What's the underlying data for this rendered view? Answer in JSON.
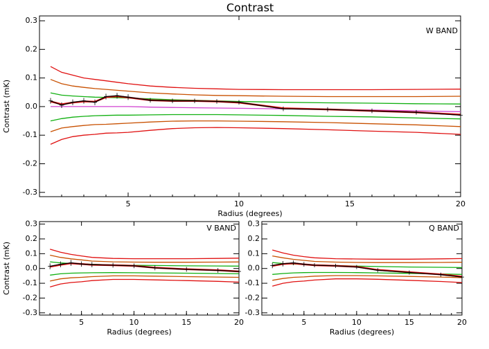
{
  "chart_data": [
    {
      "type": "line",
      "title": "Contrast",
      "annotation": "W BAND",
      "xlabel": "Radius (degrees)",
      "ylabel": "Contrast (mK)",
      "x": [
        1.5,
        2,
        2.5,
        3,
        3.5,
        4,
        4.5,
        5,
        6,
        7,
        8,
        9,
        10,
        12,
        14,
        16,
        18,
        20
      ],
      "xlim": [
        1,
        20
      ],
      "xticks": [
        5,
        10,
        15,
        20
      ],
      "ylim": [
        -0.315,
        0.317
      ],
      "yticks": [
        -0.3,
        -0.2,
        -0.1,
        {
          "value": 0,
          "label": "0.0"
        },
        0.1,
        0.2,
        0.3
      ],
      "series": [
        {
          "color": "#e01010",
          "values": [
            0.14,
            0.12,
            0.11,
            0.1,
            0.095,
            0.09,
            0.085,
            0.08,
            0.072,
            0.067,
            0.064,
            0.062,
            0.06,
            0.059,
            0.059,
            0.059,
            0.06,
            0.061
          ]
        },
        {
          "color": "#c85000",
          "values": [
            0.095,
            0.08,
            0.072,
            0.067,
            0.063,
            0.06,
            0.057,
            0.054,
            0.048,
            0.044,
            0.041,
            0.039,
            0.038,
            0.036,
            0.035,
            0.035,
            0.035,
            0.036
          ]
        },
        {
          "color": "#10b010",
          "values": [
            0.048,
            0.04,
            0.037,
            0.035,
            0.033,
            0.032,
            0.031,
            0.03,
            0.027,
            0.024,
            0.022,
            0.02,
            0.018,
            0.015,
            0.013,
            0.012,
            0.01,
            0.009
          ]
        },
        {
          "color": "#d040d0",
          "values": [
            0,
            0,
            0,
            0,
            0,
            0,
            0,
            0,
            -0.002,
            -0.003,
            -0.004,
            -0.005,
            -0.006,
            -0.008,
            -0.01,
            -0.012,
            -0.015,
            -0.018
          ]
        },
        {
          "color": "#10b010",
          "values": [
            -0.05,
            -0.042,
            -0.037,
            -0.034,
            -0.032,
            -0.031,
            -0.03,
            -0.03,
            -0.029,
            -0.028,
            -0.028,
            -0.028,
            -0.029,
            -0.031,
            -0.034,
            -0.036,
            -0.04,
            -0.043
          ]
        },
        {
          "color": "#c85000",
          "values": [
            -0.088,
            -0.075,
            -0.07,
            -0.066,
            -0.063,
            -0.062,
            -0.06,
            -0.058,
            -0.054,
            -0.051,
            -0.05,
            -0.05,
            -0.051,
            -0.053,
            -0.056,
            -0.06,
            -0.064,
            -0.07
          ]
        },
        {
          "color": "#e01010",
          "values": [
            -0.132,
            -0.115,
            -0.105,
            -0.1,
            -0.097,
            -0.093,
            -0.092,
            -0.09,
            -0.083,
            -0.077,
            -0.074,
            -0.073,
            -0.074,
            -0.077,
            -0.081,
            -0.086,
            -0.09,
            -0.097
          ]
        },
        {
          "color": "#e01010",
          "linewidth": 2.5,
          "values": [
            0.018,
            0.008,
            0.014,
            0.018,
            0.017,
            0.033,
            0.036,
            0.032,
            0.022,
            0.02,
            0.02,
            0.018,
            0.014,
            -0.006,
            -0.01,
            -0.015,
            -0.02,
            -0.028
          ]
        },
        {
          "color": "#000000",
          "values": [
            0.02,
            0.005,
            0.015,
            0.02,
            0.015,
            0.035,
            0.038,
            0.033,
            0.022,
            0.02,
            0.02,
            0.018,
            0.015,
            -0.008,
            -0.01,
            -0.015,
            -0.02,
            -0.03
          ],
          "errors": [
            0.01,
            0.01,
            0.01,
            0.01,
            0.01,
            0.01,
            0.01,
            0.01,
            0.008,
            0.008,
            0.008,
            0.008,
            0.008,
            0.008,
            0.008,
            0.008,
            0.008,
            0.008
          ]
        }
      ]
    },
    {
      "type": "line",
      "annotation": "V BAND",
      "xlabel": "Radius (degrees)",
      "ylabel": "Contrast (mK)",
      "x": [
        2,
        3,
        4,
        5,
        6,
        8,
        10,
        12,
        15,
        18,
        20
      ],
      "xlim": [
        1,
        20
      ],
      "xticks": [
        5,
        10,
        15,
        20
      ],
      "ylim": [
        -0.315,
        0.317
      ],
      "yticks": [
        -0.3,
        -0.2,
        -0.1,
        {
          "value": 0,
          "label": "0.0"
        },
        0.1,
        0.2,
        0.3
      ],
      "series": [
        {
          "color": "#e01010",
          "values": [
            0.13,
            0.11,
            0.095,
            0.085,
            0.075,
            0.068,
            0.066,
            0.066,
            0.066,
            0.068,
            0.07
          ]
        },
        {
          "color": "#c85000",
          "values": [
            0.09,
            0.075,
            0.065,
            0.058,
            0.05,
            0.045,
            0.043,
            0.042,
            0.042,
            0.043,
            0.044
          ]
        },
        {
          "color": "#10b010",
          "values": [
            0.045,
            0.038,
            0.034,
            0.032,
            0.028,
            0.024,
            0.021,
            0.02,
            0.018,
            0.017,
            0.016
          ]
        },
        {
          "color": "#10b010",
          "values": [
            -0.045,
            -0.036,
            -0.032,
            -0.03,
            -0.029,
            -0.028,
            -0.029,
            -0.03,
            -0.032,
            -0.034,
            -0.036
          ]
        },
        {
          "color": "#c85000",
          "values": [
            -0.085,
            -0.07,
            -0.063,
            -0.06,
            -0.055,
            -0.05,
            -0.05,
            -0.052,
            -0.055,
            -0.058,
            -0.06
          ]
        },
        {
          "color": "#e01010",
          "values": [
            -0.125,
            -0.105,
            -0.095,
            -0.09,
            -0.082,
            -0.074,
            -0.074,
            -0.077,
            -0.082,
            -0.087,
            -0.092
          ]
        },
        {
          "color": "#e01010",
          "linewidth": 2.5,
          "values": [
            0.012,
            0.025,
            0.035,
            0.03,
            0.025,
            0.022,
            0.018,
            0.005,
            -0.005,
            -0.012,
            -0.02
          ]
        },
        {
          "color": "#000000",
          "values": [
            0.015,
            0.028,
            0.038,
            0.03,
            0.026,
            0.022,
            0.018,
            0.004,
            -0.006,
            -0.013,
            -0.02
          ],
          "errors": [
            0.02,
            0.02,
            0.02,
            0.018,
            0.018,
            0.016,
            0.016,
            0.016,
            0.016,
            0.016,
            0.016
          ]
        }
      ]
    },
    {
      "type": "line",
      "annotation": "Q BAND",
      "xlabel": "Radius (degrees)",
      "x": [
        2,
        3,
        4,
        5,
        6,
        8,
        10,
        12,
        15,
        18,
        20
      ],
      "xlim": [
        1,
        20
      ],
      "xticks": [
        5,
        10,
        15,
        20
      ],
      "ylim": [
        -0.315,
        0.317
      ],
      "yticks": [
        -0.3,
        -0.2,
        -0.1,
        {
          "value": 0,
          "label": "0.0"
        },
        0.1,
        0.2,
        0.3
      ],
      "series": [
        {
          "color": "#e01010",
          "values": [
            0.125,
            0.105,
            0.09,
            0.08,
            0.072,
            0.066,
            0.064,
            0.063,
            0.063,
            0.065,
            0.067
          ]
        },
        {
          "color": "#c85000",
          "values": [
            0.085,
            0.072,
            0.062,
            0.055,
            0.048,
            0.043,
            0.041,
            0.04,
            0.04,
            0.041,
            0.042
          ]
        },
        {
          "color": "#10b010",
          "values": [
            0.04,
            0.034,
            0.03,
            0.028,
            0.024,
            0.02,
            0.016,
            0.013,
            0.01,
            0.008,
            0.006
          ]
        },
        {
          "color": "#10b010",
          "values": [
            -0.04,
            -0.034,
            -0.03,
            -0.028,
            -0.027,
            -0.027,
            -0.028,
            -0.03,
            -0.033,
            -0.037,
            -0.04
          ]
        },
        {
          "color": "#c85000",
          "values": [
            -0.08,
            -0.068,
            -0.06,
            -0.057,
            -0.052,
            -0.048,
            -0.048,
            -0.05,
            -0.054,
            -0.058,
            -0.062
          ]
        },
        {
          "color": "#e01010",
          "values": [
            -0.12,
            -0.1,
            -0.09,
            -0.085,
            -0.078,
            -0.07,
            -0.07,
            -0.073,
            -0.08,
            -0.088,
            -0.095
          ]
        },
        {
          "color": "#e01010",
          "linewidth": 2.5,
          "values": [
            0.018,
            0.03,
            0.035,
            0.028,
            0.022,
            0.018,
            0.012,
            -0.01,
            -0.025,
            -0.04,
            -0.055
          ]
        },
        {
          "color": "#000000",
          "values": [
            0.02,
            0.032,
            0.038,
            0.028,
            0.022,
            0.018,
            0.01,
            -0.012,
            -0.027,
            -0.042,
            -0.058
          ],
          "errors": [
            0.018,
            0.018,
            0.016,
            0.016,
            0.014,
            0.014,
            0.014,
            0.014,
            0.014,
            0.014,
            0.014
          ]
        }
      ]
    }
  ]
}
